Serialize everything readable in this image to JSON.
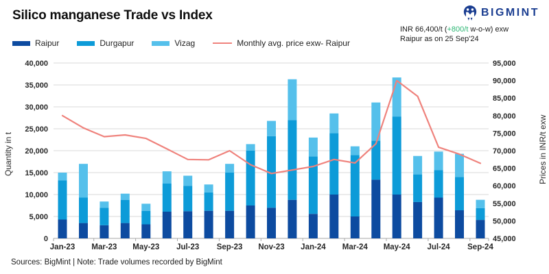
{
  "header": {
    "title": "Silico manganese Trade vs Index",
    "brand": "BIGMINT",
    "price_note": {
      "prefix": "INR 66,400/t (",
      "change": "+800/t",
      "suffix": " w-o-w) exw",
      "line2": "Raipur as on 25 Sep'24"
    }
  },
  "legend": {
    "items": [
      {
        "label": "Raipur"
      },
      {
        "label": "Durgapur"
      },
      {
        "label": "Vizag"
      },
      {
        "label": "Monthly avg. price exw- Raipur"
      }
    ]
  },
  "footer": {
    "text": "Sources: BigMint | Note: Trade volumes recorded by BigMint"
  },
  "colors": {
    "raipur": "#0d4ba0",
    "durgapur": "#0d9bd8",
    "vizag": "#55c0eb",
    "price_line": "#ef827c",
    "positive": "#2bb673",
    "brand": "#1b3e91",
    "grid": "#d9d9d9",
    "axis": "#a6a6a6"
  },
  "chart_data": {
    "type": "bar",
    "stacked": true,
    "title": "Silico manganese Trade vs Index",
    "grid": true,
    "legend_position": "top-left",
    "categories": [
      "Jan-23",
      "Feb-23",
      "Mar-23",
      "Apr-23",
      "May-23",
      "Jun-23",
      "Jul-23",
      "Aug-23",
      "Sep-23",
      "Oct-23",
      "Nov-23",
      "Dec-23",
      "Jan-24",
      "Feb-24",
      "Mar-24",
      "Apr-24",
      "May-24",
      "Jun-24",
      "Jul-24",
      "Aug-24",
      "Sep-24"
    ],
    "x_label_every": 2,
    "series": [
      {
        "name": "Raipur",
        "axis": "left",
        "values": [
          4300,
          3500,
          3000,
          3500,
          3200,
          6100,
          6200,
          6300,
          6300,
          7500,
          7000,
          8800,
          5600,
          10000,
          5000,
          13400,
          10000,
          8300,
          9300,
          6400,
          4200
        ]
      },
      {
        "name": "Durgapur",
        "axis": "left",
        "values": [
          8900,
          5800,
          4000,
          5300,
          3100,
          6400,
          5800,
          4200,
          8700,
          12500,
          16300,
          18200,
          13100,
          14000,
          14000,
          8900,
          17800,
          6300,
          6300,
          7600,
          2700
        ]
      },
      {
        "name": "Vizag",
        "axis": "left",
        "values": [
          1800,
          7700,
          1400,
          1400,
          1600,
          2800,
          2300,
          1800,
          2000,
          1500,
          3500,
          9300,
          4300,
          4500,
          2000,
          8700,
          8900,
          4200,
          4200,
          5300,
          1900
        ]
      }
    ],
    "line_series": {
      "name": "Monthly avg. price exw- Raipur",
      "type": "line",
      "axis": "right",
      "values": [
        80000,
        76500,
        74000,
        74500,
        73500,
        70500,
        67500,
        67400,
        70000,
        66000,
        63500,
        64500,
        65500,
        67500,
        66500,
        72000,
        90000,
        85500,
        71000,
        69000,
        66400
      ]
    },
    "y_left": {
      "title": "Quantity in t",
      "min": 0,
      "max": 40000,
      "step": 5000
    },
    "y_right": {
      "title": "Prices in INR/t exw",
      "min": 45000,
      "max": 95000,
      "step": 5000
    }
  }
}
